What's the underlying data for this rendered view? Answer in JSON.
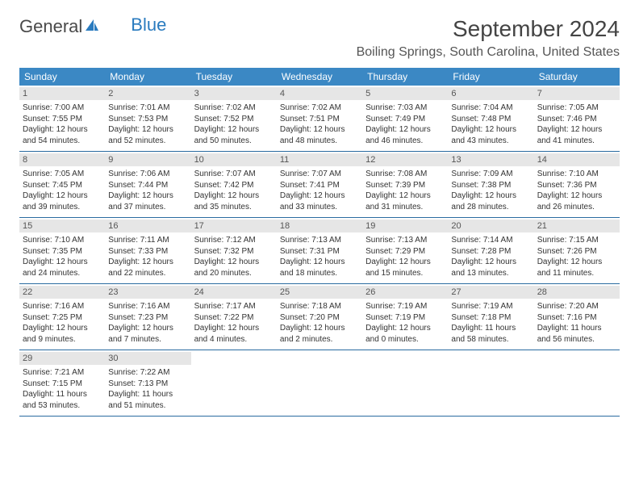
{
  "logo": {
    "text1": "General",
    "text2": "Blue",
    "icon_color": "#2a7bbf"
  },
  "title": "September 2024",
  "location": "Boiling Springs, South Carolina, United States",
  "colors": {
    "header_bg": "#3b88c4",
    "header_text": "#ffffff",
    "daynum_bg": "#e6e6e6",
    "week_border": "#2a6ba0",
    "text": "#333333"
  },
  "weekdays": [
    "Sunday",
    "Monday",
    "Tuesday",
    "Wednesday",
    "Thursday",
    "Friday",
    "Saturday"
  ],
  "weeks": [
    [
      {
        "n": "1",
        "sunrise": "7:00 AM",
        "sunset": "7:55 PM",
        "dl1": "Daylight: 12 hours",
        "dl2": "and 54 minutes."
      },
      {
        "n": "2",
        "sunrise": "7:01 AM",
        "sunset": "7:53 PM",
        "dl1": "Daylight: 12 hours",
        "dl2": "and 52 minutes."
      },
      {
        "n": "3",
        "sunrise": "7:02 AM",
        "sunset": "7:52 PM",
        "dl1": "Daylight: 12 hours",
        "dl2": "and 50 minutes."
      },
      {
        "n": "4",
        "sunrise": "7:02 AM",
        "sunset": "7:51 PM",
        "dl1": "Daylight: 12 hours",
        "dl2": "and 48 minutes."
      },
      {
        "n": "5",
        "sunrise": "7:03 AM",
        "sunset": "7:49 PM",
        "dl1": "Daylight: 12 hours",
        "dl2": "and 46 minutes."
      },
      {
        "n": "6",
        "sunrise": "7:04 AM",
        "sunset": "7:48 PM",
        "dl1": "Daylight: 12 hours",
        "dl2": "and 43 minutes."
      },
      {
        "n": "7",
        "sunrise": "7:05 AM",
        "sunset": "7:46 PM",
        "dl1": "Daylight: 12 hours",
        "dl2": "and 41 minutes."
      }
    ],
    [
      {
        "n": "8",
        "sunrise": "7:05 AM",
        "sunset": "7:45 PM",
        "dl1": "Daylight: 12 hours",
        "dl2": "and 39 minutes."
      },
      {
        "n": "9",
        "sunrise": "7:06 AM",
        "sunset": "7:44 PM",
        "dl1": "Daylight: 12 hours",
        "dl2": "and 37 minutes."
      },
      {
        "n": "10",
        "sunrise": "7:07 AM",
        "sunset": "7:42 PM",
        "dl1": "Daylight: 12 hours",
        "dl2": "and 35 minutes."
      },
      {
        "n": "11",
        "sunrise": "7:07 AM",
        "sunset": "7:41 PM",
        "dl1": "Daylight: 12 hours",
        "dl2": "and 33 minutes."
      },
      {
        "n": "12",
        "sunrise": "7:08 AM",
        "sunset": "7:39 PM",
        "dl1": "Daylight: 12 hours",
        "dl2": "and 31 minutes."
      },
      {
        "n": "13",
        "sunrise": "7:09 AM",
        "sunset": "7:38 PM",
        "dl1": "Daylight: 12 hours",
        "dl2": "and 28 minutes."
      },
      {
        "n": "14",
        "sunrise": "7:10 AM",
        "sunset": "7:36 PM",
        "dl1": "Daylight: 12 hours",
        "dl2": "and 26 minutes."
      }
    ],
    [
      {
        "n": "15",
        "sunrise": "7:10 AM",
        "sunset": "7:35 PM",
        "dl1": "Daylight: 12 hours",
        "dl2": "and 24 minutes."
      },
      {
        "n": "16",
        "sunrise": "7:11 AM",
        "sunset": "7:33 PM",
        "dl1": "Daylight: 12 hours",
        "dl2": "and 22 minutes."
      },
      {
        "n": "17",
        "sunrise": "7:12 AM",
        "sunset": "7:32 PM",
        "dl1": "Daylight: 12 hours",
        "dl2": "and 20 minutes."
      },
      {
        "n": "18",
        "sunrise": "7:13 AM",
        "sunset": "7:31 PM",
        "dl1": "Daylight: 12 hours",
        "dl2": "and 18 minutes."
      },
      {
        "n": "19",
        "sunrise": "7:13 AM",
        "sunset": "7:29 PM",
        "dl1": "Daylight: 12 hours",
        "dl2": "and 15 minutes."
      },
      {
        "n": "20",
        "sunrise": "7:14 AM",
        "sunset": "7:28 PM",
        "dl1": "Daylight: 12 hours",
        "dl2": "and 13 minutes."
      },
      {
        "n": "21",
        "sunrise": "7:15 AM",
        "sunset": "7:26 PM",
        "dl1": "Daylight: 12 hours",
        "dl2": "and 11 minutes."
      }
    ],
    [
      {
        "n": "22",
        "sunrise": "7:16 AM",
        "sunset": "7:25 PM",
        "dl1": "Daylight: 12 hours",
        "dl2": "and 9 minutes."
      },
      {
        "n": "23",
        "sunrise": "7:16 AM",
        "sunset": "7:23 PM",
        "dl1": "Daylight: 12 hours",
        "dl2": "and 7 minutes."
      },
      {
        "n": "24",
        "sunrise": "7:17 AM",
        "sunset": "7:22 PM",
        "dl1": "Daylight: 12 hours",
        "dl2": "and 4 minutes."
      },
      {
        "n": "25",
        "sunrise": "7:18 AM",
        "sunset": "7:20 PM",
        "dl1": "Daylight: 12 hours",
        "dl2": "and 2 minutes."
      },
      {
        "n": "26",
        "sunrise": "7:19 AM",
        "sunset": "7:19 PM",
        "dl1": "Daylight: 12 hours",
        "dl2": "and 0 minutes."
      },
      {
        "n": "27",
        "sunrise": "7:19 AM",
        "sunset": "7:18 PM",
        "dl1": "Daylight: 11 hours",
        "dl2": "and 58 minutes."
      },
      {
        "n": "28",
        "sunrise": "7:20 AM",
        "sunset": "7:16 PM",
        "dl1": "Daylight: 11 hours",
        "dl2": "and 56 minutes."
      }
    ],
    [
      {
        "n": "29",
        "sunrise": "7:21 AM",
        "sunset": "7:15 PM",
        "dl1": "Daylight: 11 hours",
        "dl2": "and 53 minutes."
      },
      {
        "n": "30",
        "sunrise": "7:22 AM",
        "sunset": "7:13 PM",
        "dl1": "Daylight: 11 hours",
        "dl2": "and 51 minutes."
      },
      null,
      null,
      null,
      null,
      null
    ]
  ]
}
